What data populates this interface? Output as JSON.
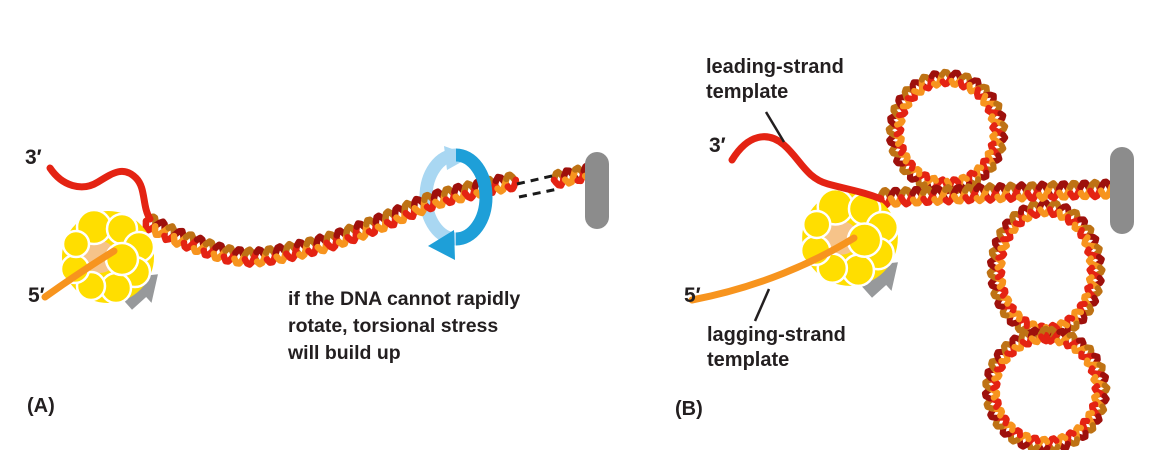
{
  "figure": {
    "panel_a": {
      "tag": "(A)",
      "three_prime": "3′",
      "five_prime": "5′",
      "caption_lines": [
        "if the DNA cannot rapidly",
        "rotate, torsional stress",
        "will build up"
      ]
    },
    "panel_b": {
      "tag": "(B)",
      "three_prime": "3′",
      "five_prime": "5′",
      "leading_label_lines": [
        "leading-strand",
        "template"
      ],
      "lagging_label_lines": [
        "lagging-strand",
        "template"
      ]
    }
  },
  "icons": {
    "rotation_arrow": "circular-rotation-arrow-icon",
    "anchor": "anchor-capsule",
    "polymerase": "dna-polymerase-blob",
    "movement_arrow": "fork-movement-arrow-icon",
    "helix": "dna-double-helix"
  },
  "colors": {
    "helix_red": "#E42313",
    "helix_red_dark": "#9E100C",
    "helix_orange": "#F7941E",
    "helix_orange_dark": "#BE7214",
    "strand_red": "#E42313",
    "strand_orange": "#F7941E",
    "polymerase_yellow": "#FFDE00",
    "polymerase_core": "#F6C389",
    "anchor_gray": "#8C8C8C",
    "arrow_gray": "#97999B",
    "rotation_blue": "#1E9FD8",
    "rotation_blue_light": "#A9D7F2",
    "dash_black": "#1A1A1A",
    "text": "#231F20",
    "background": "#FFFFFF"
  }
}
